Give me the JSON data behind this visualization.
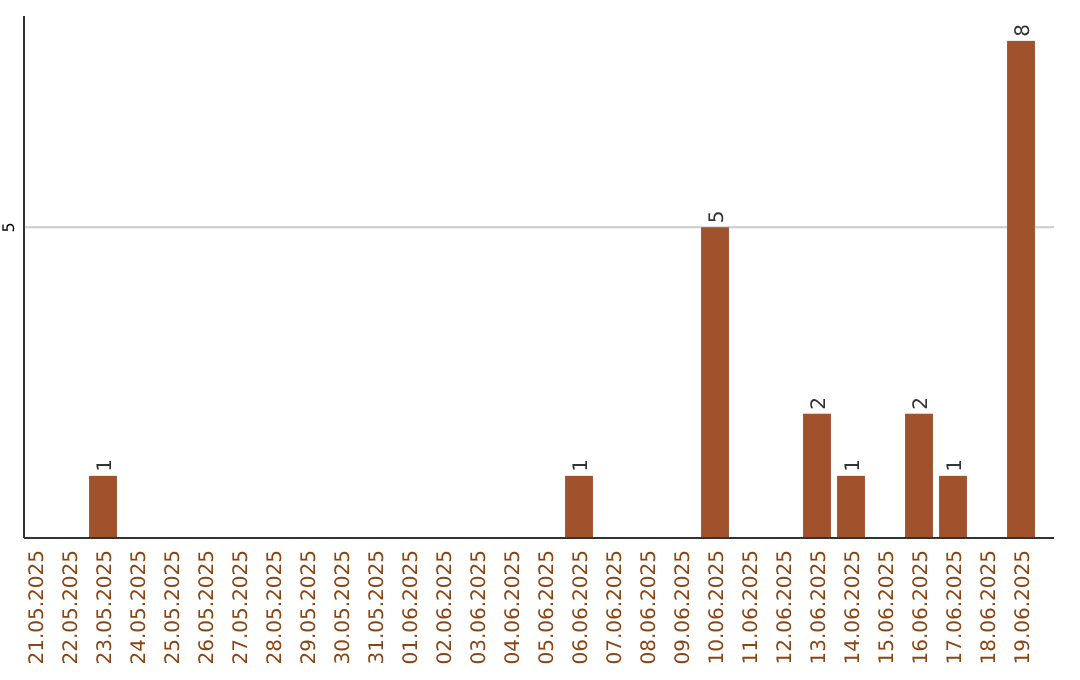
{
  "chart_data": {
    "type": "bar",
    "categories": [
      "21.05.2025",
      "22.05.2025",
      "23.05.2025",
      "24.05.2025",
      "25.05.2025",
      "26.05.2025",
      "27.05.2025",
      "28.05.2025",
      "29.05.2025",
      "30.05.2025",
      "31.05.2025",
      "01.06.2025",
      "02.06.2025",
      "03.06.2025",
      "04.06.2025",
      "05.06.2025",
      "06.06.2025",
      "07.06.2025",
      "08.06.2025",
      "09.06.2025",
      "10.06.2025",
      "11.06.2025",
      "12.06.2025",
      "13.06.2025",
      "14.06.2025",
      "15.06.2025",
      "16.06.2025",
      "17.06.2025",
      "18.06.2025",
      "19.06.2025"
    ],
    "values": [
      0,
      0,
      1,
      0,
      0,
      0,
      0,
      0,
      0,
      0,
      0,
      0,
      0,
      0,
      0,
      0,
      1,
      0,
      0,
      0,
      5,
      0,
      0,
      2,
      1,
      0,
      2,
      1,
      0,
      8
    ],
    "value_labels": [
      null,
      null,
      "1",
      null,
      null,
      null,
      null,
      null,
      null,
      null,
      null,
      null,
      null,
      null,
      null,
      null,
      "1",
      null,
      null,
      null,
      "5",
      null,
      null,
      "2",
      "1",
      null,
      "2",
      "1",
      null,
      "8"
    ],
    "color": "#a0522d",
    "ylim": [
      0,
      8.4
    ],
    "yticks": [
      5
    ],
    "grid": "y"
  }
}
